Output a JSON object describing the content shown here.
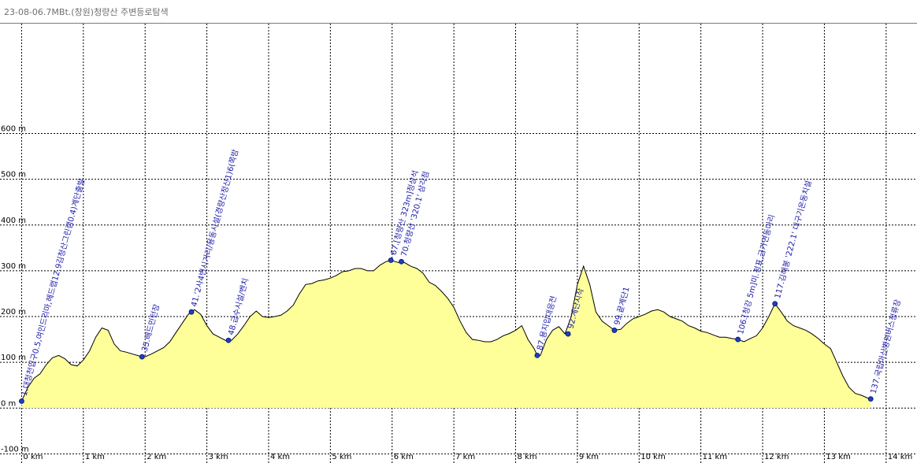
{
  "window": {
    "title": "23-08-06.7MBt.(창원)청량산 주변등로탐색"
  },
  "colors": {
    "fill": "#ffff99",
    "profile_line": "#000000",
    "grid": "#000000",
    "waypoint": "#1f3fbf",
    "label": "#1a1aa8"
  },
  "chart_data": {
    "type": "area",
    "title": "",
    "xlabel": "",
    "ylabel": "",
    "xlim": [
      -0.35,
      14.5
    ],
    "ylim": [
      -120,
      840
    ],
    "x_ticks": [
      0,
      1,
      2,
      3,
      4,
      5,
      6,
      7,
      8,
      9,
      10,
      11,
      12,
      13,
      14
    ],
    "x_tick_labels": [
      "0 km",
      "1 km",
      "2 km",
      "3 km",
      "4 km",
      "5 km",
      "6 km",
      "7 km",
      "8 km",
      "9 km",
      "10 km",
      "11 km",
      "12 km",
      "13 km",
      "14 km"
    ],
    "y_ticks": [
      -100,
      0,
      100,
      200,
      300,
      400,
      500,
      600
    ],
    "y_tick_labels": [
      "-100 m",
      "0 m",
      "100 m",
      "200 m",
      "300 m",
      "400 m",
      "500 m",
      "600 m"
    ],
    "grid": true,
    "profile": [
      [
        0.0,
        15
      ],
      [
        0.1,
        45
      ],
      [
        0.2,
        65
      ],
      [
        0.3,
        75
      ],
      [
        0.4,
        95
      ],
      [
        0.5,
        110
      ],
      [
        0.6,
        115
      ],
      [
        0.7,
        108
      ],
      [
        0.8,
        95
      ],
      [
        0.9,
        92
      ],
      [
        1.0,
        105
      ],
      [
        1.1,
        125
      ],
      [
        1.2,
        155
      ],
      [
        1.3,
        175
      ],
      [
        1.4,
        170
      ],
      [
        1.5,
        140
      ],
      [
        1.6,
        125
      ],
      [
        1.7,
        122
      ],
      [
        1.8,
        118
      ],
      [
        1.9,
        114
      ],
      [
        2.0,
        112
      ],
      [
        2.1,
        118
      ],
      [
        2.2,
        125
      ],
      [
        2.3,
        132
      ],
      [
        2.4,
        145
      ],
      [
        2.5,
        165
      ],
      [
        2.6,
        185
      ],
      [
        2.7,
        205
      ],
      [
        2.8,
        215
      ],
      [
        2.9,
        205
      ],
      [
        3.0,
        180
      ],
      [
        3.1,
        162
      ],
      [
        3.2,
        155
      ],
      [
        3.3,
        148
      ],
      [
        3.4,
        148
      ],
      [
        3.5,
        162
      ],
      [
        3.6,
        180
      ],
      [
        3.7,
        200
      ],
      [
        3.8,
        212
      ],
      [
        3.9,
        200
      ],
      [
        4.0,
        198
      ],
      [
        4.1,
        200
      ],
      [
        4.2,
        203
      ],
      [
        4.3,
        212
      ],
      [
        4.4,
        225
      ],
      [
        4.5,
        250
      ],
      [
        4.6,
        270
      ],
      [
        4.7,
        272
      ],
      [
        4.8,
        278
      ],
      [
        4.9,
        280
      ],
      [
        5.0,
        284
      ],
      [
        5.1,
        290
      ],
      [
        5.2,
        298
      ],
      [
        5.3,
        300
      ],
      [
        5.4,
        305
      ],
      [
        5.5,
        305
      ],
      [
        5.6,
        300
      ],
      [
        5.7,
        300
      ],
      [
        5.8,
        312
      ],
      [
        5.9,
        320
      ],
      [
        5.98,
        323
      ],
      [
        6.05,
        320
      ],
      [
        6.1,
        318
      ],
      [
        6.2,
        318
      ],
      [
        6.3,
        310
      ],
      [
        6.4,
        305
      ],
      [
        6.5,
        295
      ],
      [
        6.6,
        275
      ],
      [
        6.7,
        268
      ],
      [
        6.8,
        255
      ],
      [
        6.9,
        240
      ],
      [
        7.0,
        220
      ],
      [
        7.1,
        190
      ],
      [
        7.2,
        165
      ],
      [
        7.3,
        150
      ],
      [
        7.4,
        148
      ],
      [
        7.5,
        145
      ],
      [
        7.6,
        145
      ],
      [
        7.7,
        150
      ],
      [
        7.8,
        158
      ],
      [
        7.9,
        163
      ],
      [
        8.0,
        170
      ],
      [
        8.1,
        180
      ],
      [
        8.2,
        150
      ],
      [
        8.3,
        130
      ],
      [
        8.35,
        115
      ],
      [
        8.4,
        115
      ],
      [
        8.5,
        150
      ],
      [
        8.6,
        170
      ],
      [
        8.7,
        178
      ],
      [
        8.8,
        162
      ],
      [
        8.9,
        200
      ],
      [
        9.0,
        270
      ],
      [
        9.1,
        310
      ],
      [
        9.2,
        270
      ],
      [
        9.3,
        210
      ],
      [
        9.4,
        190
      ],
      [
        9.5,
        180
      ],
      [
        9.6,
        170
      ],
      [
        9.7,
        172
      ],
      [
        9.8,
        185
      ],
      [
        9.9,
        195
      ],
      [
        10.0,
        200
      ],
      [
        10.1,
        205
      ],
      [
        10.2,
        212
      ],
      [
        10.3,
        215
      ],
      [
        10.4,
        210
      ],
      [
        10.5,
        200
      ],
      [
        10.6,
        195
      ],
      [
        10.7,
        190
      ],
      [
        10.8,
        180
      ],
      [
        10.9,
        175
      ],
      [
        11.0,
        168
      ],
      [
        11.1,
        165
      ],
      [
        11.2,
        160
      ],
      [
        11.3,
        155
      ],
      [
        11.4,
        155
      ],
      [
        11.5,
        152
      ],
      [
        11.6,
        150
      ],
      [
        11.7,
        145
      ],
      [
        11.8,
        152
      ],
      [
        11.9,
        158
      ],
      [
        12.0,
        175
      ],
      [
        12.1,
        200
      ],
      [
        12.2,
        228
      ],
      [
        12.3,
        210
      ],
      [
        12.4,
        190
      ],
      [
        12.5,
        180
      ],
      [
        12.6,
        175
      ],
      [
        12.7,
        170
      ],
      [
        12.8,
        162
      ],
      [
        12.9,
        152
      ],
      [
        13.0,
        140
      ],
      [
        13.1,
        130
      ],
      [
        13.2,
        100
      ],
      [
        13.3,
        70
      ],
      [
        13.4,
        45
      ],
      [
        13.5,
        32
      ],
      [
        13.6,
        28
      ],
      [
        13.7,
        22
      ],
      [
        13.75,
        20
      ]
    ],
    "waypoints": [
      {
        "x": 0.0,
        "y": 15,
        "label": "1.대청천입구0.5,여인드리마,헤드랩12.9김청산그린캠0.4)계단출발"
      },
      {
        "x": 1.95,
        "y": 112,
        "label": "35.배드민턴장"
      },
      {
        "x": 2.75,
        "y": 210,
        "label": "41.'2사4변시거리/용동시설(경량산정산1)6(쪽밤"
      },
      {
        "x": 3.35,
        "y": 148,
        "label": "48.급수시설/벤치"
      },
      {
        "x": 5.98,
        "y": 323,
        "label": "67.[청량산 323m]정상석"
      },
      {
        "x": 6.15,
        "y": 320,
        "label": "70.청량산 '320.1' 삼각점"
      },
      {
        "x": 8.35,
        "y": 115,
        "label": "87.용지입대응전"
      },
      {
        "x": 8.85,
        "y": 162,
        "label": "92.계단시작"
      },
      {
        "x": 9.6,
        "y": 170,
        "label": "99.끝계단1"
      },
      {
        "x": 11.6,
        "y": 150,
        "label": "106.[청강 5m]미.정표,금가면동마리"
      },
      {
        "x": 12.2,
        "y": 228,
        "label": "117.김해봉 '222.1' 대구기온동치설"
      },
      {
        "x": 13.75,
        "y": 20,
        "label": "137.국립마산병원버스정류장"
      }
    ]
  }
}
